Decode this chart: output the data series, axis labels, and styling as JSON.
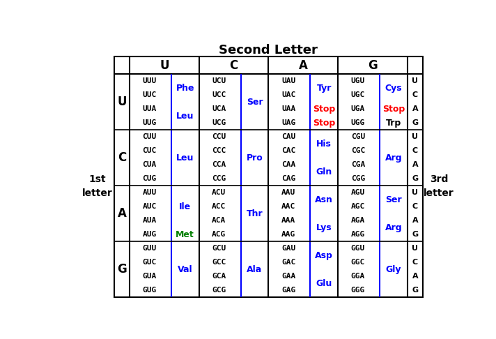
{
  "title": "Second Letter",
  "second_letters": [
    "U",
    "C",
    "A",
    "G"
  ],
  "first_letters": [
    "U",
    "C",
    "A",
    "G"
  ],
  "cells": [
    {
      "row": 0,
      "col": 0,
      "codons": [
        "UUU",
        "UUC",
        "UUA",
        "UUG"
      ],
      "aminos": [
        {
          "text": "Phe",
          "rows": [
            0,
            1
          ],
          "color": "blue"
        },
        {
          "text": "Leu",
          "rows": [
            2,
            3
          ],
          "color": "blue"
        }
      ]
    },
    {
      "row": 0,
      "col": 1,
      "codons": [
        "UCU",
        "UCC",
        "UCA",
        "UCG"
      ],
      "aminos": [
        {
          "text": "Ser",
          "rows": [
            0,
            1,
            2,
            3
          ],
          "color": "blue"
        }
      ]
    },
    {
      "row": 0,
      "col": 2,
      "codons": [
        "UAU",
        "UAC",
        "UAA",
        "UAG"
      ],
      "aminos": [
        {
          "text": "Tyr",
          "rows": [
            0,
            1
          ],
          "color": "blue"
        },
        {
          "text": "Stop",
          "rows": [
            2
          ],
          "color": "red"
        },
        {
          "text": "Stop",
          "rows": [
            3
          ],
          "color": "red"
        }
      ]
    },
    {
      "row": 0,
      "col": 3,
      "codons": [
        "UGU",
        "UGC",
        "UGA",
        "UGG"
      ],
      "aminos": [
        {
          "text": "Cys",
          "rows": [
            0,
            1
          ],
          "color": "blue"
        },
        {
          "text": "Stop",
          "rows": [
            2
          ],
          "color": "red"
        },
        {
          "text": "Trp",
          "rows": [
            3
          ],
          "color": "black"
        }
      ]
    },
    {
      "row": 1,
      "col": 0,
      "codons": [
        "CUU",
        "CUC",
        "CUA",
        "CUG"
      ],
      "aminos": [
        {
          "text": "Leu",
          "rows": [
            0,
            1,
            2,
            3
          ],
          "color": "blue"
        }
      ]
    },
    {
      "row": 1,
      "col": 1,
      "codons": [
        "CCU",
        "CCC",
        "CCA",
        "CCG"
      ],
      "aminos": [
        {
          "text": "Pro",
          "rows": [
            0,
            1,
            2,
            3
          ],
          "color": "blue"
        }
      ]
    },
    {
      "row": 1,
      "col": 2,
      "codons": [
        "CAU",
        "CAC",
        "CAA",
        "CAG"
      ],
      "aminos": [
        {
          "text": "His",
          "rows": [
            0,
            1
          ],
          "color": "blue"
        },
        {
          "text": "Gln",
          "rows": [
            2,
            3
          ],
          "color": "blue"
        }
      ]
    },
    {
      "row": 1,
      "col": 3,
      "codons": [
        "CGU",
        "CGC",
        "CGA",
        "CGG"
      ],
      "aminos": [
        {
          "text": "Arg",
          "rows": [
            0,
            1,
            2,
            3
          ],
          "color": "blue"
        }
      ]
    },
    {
      "row": 2,
      "col": 0,
      "codons": [
        "AUU",
        "AUC",
        "AUA",
        "AUG"
      ],
      "aminos": [
        {
          "text": "Ile",
          "rows": [
            0,
            1,
            2
          ],
          "color": "blue"
        },
        {
          "text": "Met",
          "rows": [
            3
          ],
          "color": "green"
        }
      ]
    },
    {
      "row": 2,
      "col": 1,
      "codons": [
        "ACU",
        "ACC",
        "ACA",
        "ACG"
      ],
      "aminos": [
        {
          "text": "Thr",
          "rows": [
            0,
            1,
            2,
            3
          ],
          "color": "blue"
        }
      ]
    },
    {
      "row": 2,
      "col": 2,
      "codons": [
        "AAU",
        "AAC",
        "AAA",
        "AAG"
      ],
      "aminos": [
        {
          "text": "Asn",
          "rows": [
            0,
            1
          ],
          "color": "blue"
        },
        {
          "text": "Lys",
          "rows": [
            2,
            3
          ],
          "color": "blue"
        }
      ]
    },
    {
      "row": 2,
      "col": 3,
      "codons": [
        "AGU",
        "AGC",
        "AGA",
        "AGG"
      ],
      "aminos": [
        {
          "text": "Ser",
          "rows": [
            0,
            1
          ],
          "color": "blue"
        },
        {
          "text": "Arg",
          "rows": [
            2,
            3
          ],
          "color": "blue"
        }
      ]
    },
    {
      "row": 3,
      "col": 0,
      "codons": [
        "GUU",
        "GUC",
        "GUA",
        "GUG"
      ],
      "aminos": [
        {
          "text": "Val",
          "rows": [
            0,
            1,
            2,
            3
          ],
          "color": "blue"
        }
      ]
    },
    {
      "row": 3,
      "col": 1,
      "codons": [
        "GCU",
        "GCC",
        "GCA",
        "GCG"
      ],
      "aminos": [
        {
          "text": "Ala",
          "rows": [
            0,
            1,
            2,
            3
          ],
          "color": "blue"
        }
      ]
    },
    {
      "row": 3,
      "col": 2,
      "codons": [
        "GAU",
        "GAC",
        "GAA",
        "GAG"
      ],
      "aminos": [
        {
          "text": "Asp",
          "rows": [
            0,
            1
          ],
          "color": "blue"
        },
        {
          "text": "Glu",
          "rows": [
            2,
            3
          ],
          "color": "blue"
        }
      ]
    },
    {
      "row": 3,
      "col": 3,
      "codons": [
        "GGU",
        "GGC",
        "GGA",
        "GGG"
      ],
      "aminos": [
        {
          "text": "Gly",
          "rows": [
            0,
            1,
            2,
            3
          ],
          "color": "blue"
        }
      ]
    }
  ]
}
